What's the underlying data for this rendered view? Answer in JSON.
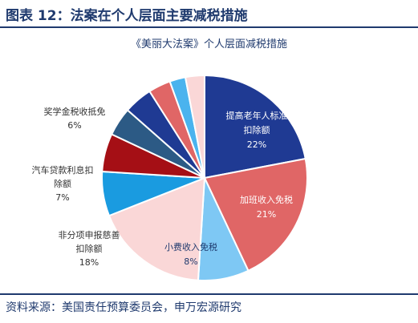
{
  "figure_title": "图表 12：法案在个人层面主要减税措施",
  "source": "资料来源：美国责任预算委员会，申万宏源研究",
  "chart_data": {
    "type": "pie",
    "title": "《美丽大法案》个人层面减税措施",
    "slices": [
      {
        "label_lines": [
          "提高老年人标准",
          "扣除额"
        ],
        "value": 22,
        "value_label": "22%",
        "color": "#1f3a93",
        "label_color": "#ffffff"
      },
      {
        "label_lines": [
          "加班收入免税"
        ],
        "value": 21,
        "value_label": "21%",
        "color": "#e06666",
        "label_color": "#ffffff"
      },
      {
        "label_lines": [
          "小费收入免税"
        ],
        "value": 8,
        "value_label": "8%",
        "color": "#7ec8f4",
        "label_color": "#1f3a6e"
      },
      {
        "label_lines": [
          "非分项申报慈善",
          "扣除额"
        ],
        "value": 18,
        "value_label": "18%",
        "color": "#fad7d7",
        "label_color": "#333333"
      },
      {
        "label_lines": [
          "汽车贷款利息扣",
          "除额"
        ],
        "value": 7,
        "value_label": "7%",
        "color": "#1a9be0",
        "label_color": "#333333"
      },
      {
        "label_lines": [
          "奖学金税收抵免"
        ],
        "value": 6,
        "value_label": "6%",
        "color": "#a50f15",
        "label_color": "#333333"
      },
      {
        "label_lines": [],
        "value": 4.5,
        "value_label": "",
        "color": "#2c5a85",
        "label_color": "#333333"
      },
      {
        "label_lines": [],
        "value": 4.5,
        "value_label": "",
        "color": "#1f3a93",
        "label_color": "#333333"
      },
      {
        "label_lines": [],
        "value": 3.5,
        "value_label": "",
        "color": "#e06666",
        "label_color": "#333333"
      },
      {
        "label_lines": [],
        "value": 2.5,
        "value_label": "",
        "color": "#4ab3ee",
        "label_color": "#333333"
      },
      {
        "label_lines": [],
        "value": 3,
        "value_label": "",
        "color": "#fad7d7",
        "label_color": "#333333"
      }
    ]
  }
}
